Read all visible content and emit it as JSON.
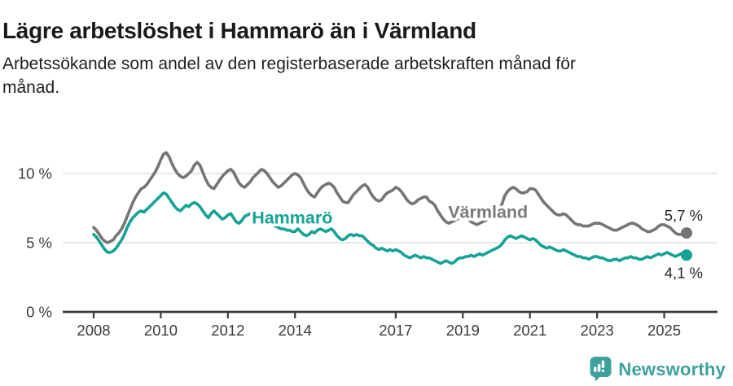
{
  "header": {
    "title": "Lägre arbetslöshet i Hammarö än i Värmland",
    "subtitle_line1": "Arbetssökande som andel av den registerbaserade arbetskraften månad för",
    "subtitle_line2": "månad."
  },
  "footer": {
    "brand": "Newsworthy",
    "logo_icon": "bar-chart-speech-bubble-icon",
    "brand_color": "#3da19b"
  },
  "chart_data": {
    "type": "line",
    "title": "",
    "xlabel": "",
    "ylabel": "",
    "unit": "%",
    "x_interval": "monthly",
    "x_range": [
      "2008-01",
      "2025-09"
    ],
    "ylim": [
      0,
      12.2
    ],
    "grid": "horizontal",
    "y_gridlines": [
      5,
      10
    ],
    "gridline_color": "#d9d9d9",
    "axis_color": "#3b3b3b",
    "y_ticks": [
      {
        "value": 0,
        "label": "0 %"
      },
      {
        "value": 5,
        "label": "5 %"
      },
      {
        "value": 10,
        "label": "10 %"
      }
    ],
    "x_ticks": [
      {
        "label": "2008",
        "month_index": 0
      },
      {
        "label": "2010",
        "month_index": 24
      },
      {
        "label": "2012",
        "month_index": 48
      },
      {
        "label": "2014",
        "month_index": 72
      },
      {
        "label": "2017",
        "month_index": 108
      },
      {
        "label": "2019",
        "month_index": 132
      },
      {
        "label": "2021",
        "month_index": 156
      },
      {
        "label": "2023",
        "month_index": 180
      },
      {
        "label": "2025",
        "month_index": 204
      }
    ],
    "series": [
      {
        "id": "varmland",
        "name": "Värmland",
        "color": "#757575",
        "label_color": "#7a7a7a",
        "end_label": "5,7 %",
        "end_value": 5.7,
        "end_label_position": "above",
        "inline_label": {
          "month_index": 141,
          "value": 7.2
        },
        "values": [
          6.1,
          5.9,
          5.6,
          5.3,
          5.1,
          5.0,
          5.1,
          5.2,
          5.5,
          5.7,
          6.0,
          6.4,
          6.9,
          7.4,
          7.9,
          8.3,
          8.6,
          8.9,
          9.0,
          9.2,
          9.5,
          9.8,
          10.1,
          10.5,
          11.0,
          11.4,
          11.5,
          11.2,
          10.7,
          10.3,
          10.0,
          9.8,
          9.7,
          9.8,
          10.0,
          10.2,
          10.6,
          10.8,
          10.6,
          10.1,
          9.6,
          9.2,
          9.0,
          8.9,
          9.2,
          9.5,
          9.8,
          10.0,
          10.2,
          10.3,
          10.1,
          9.7,
          9.3,
          9.1,
          9.0,
          9.2,
          9.4,
          9.7,
          9.9,
          10.1,
          10.3,
          10.2,
          10.0,
          9.7,
          9.4,
          9.2,
          9.0,
          9.1,
          9.3,
          9.5,
          9.7,
          9.9,
          10.0,
          9.9,
          9.7,
          9.3,
          8.9,
          8.6,
          8.4,
          8.3,
          8.6,
          8.9,
          9.1,
          9.2,
          9.3,
          9.2,
          9.0,
          8.6,
          8.3,
          8.0,
          7.9,
          7.9,
          8.2,
          8.5,
          8.7,
          8.9,
          9.1,
          9.2,
          9.0,
          8.6,
          8.3,
          8.1,
          8.0,
          8.1,
          8.4,
          8.6,
          8.7,
          8.8,
          9.0,
          8.9,
          8.7,
          8.4,
          8.1,
          7.9,
          7.8,
          7.9,
          8.1,
          8.2,
          8.3,
          8.3,
          8.0,
          7.9,
          7.7,
          7.3,
          7.0,
          6.7,
          6.5,
          6.4,
          6.5,
          6.6,
          6.7,
          6.8,
          6.9,
          6.8,
          6.7,
          6.5,
          6.4,
          6.3,
          6.4,
          6.5,
          6.6,
          6.7,
          6.8,
          7.0,
          7.2,
          7.4,
          7.8,
          8.4,
          8.7,
          8.9,
          9.0,
          8.9,
          8.7,
          8.6,
          8.6,
          8.7,
          8.9,
          8.9,
          8.8,
          8.5,
          8.2,
          7.9,
          7.7,
          7.5,
          7.3,
          7.1,
          7.0,
          7.0,
          7.1,
          7.0,
          6.8,
          6.6,
          6.4,
          6.3,
          6.3,
          6.2,
          6.2,
          6.2,
          6.3,
          6.4,
          6.4,
          6.4,
          6.3,
          6.2,
          6.1,
          6.0,
          5.9,
          5.9,
          6.0,
          6.1,
          6.2,
          6.3,
          6.4,
          6.4,
          6.3,
          6.2,
          6.0,
          5.9,
          5.8,
          5.8,
          5.9,
          6.0,
          6.2,
          6.3,
          6.3,
          6.2,
          6.1,
          5.9,
          5.7,
          5.6,
          5.6,
          5.7,
          5.7
        ]
      },
      {
        "id": "hammaro",
        "name": "Hammarö",
        "color": "#14a395",
        "label_color": "#14a395",
        "end_label": "4,1 %",
        "end_value": 4.1,
        "end_label_position": "below",
        "inline_label": {
          "month_index": 71,
          "value": 6.8
        },
        "values": [
          5.6,
          5.4,
          5.1,
          4.8,
          4.5,
          4.3,
          4.3,
          4.4,
          4.6,
          4.9,
          5.2,
          5.6,
          6.1,
          6.5,
          6.8,
          7.0,
          7.2,
          7.3,
          7.2,
          7.4,
          7.6,
          7.8,
          8.0,
          8.2,
          8.4,
          8.6,
          8.5,
          8.2,
          7.9,
          7.6,
          7.4,
          7.3,
          7.5,
          7.7,
          7.6,
          7.8,
          7.9,
          7.8,
          7.6,
          7.3,
          7.0,
          6.8,
          7.1,
          7.3,
          7.1,
          6.9,
          6.7,
          6.8,
          7.0,
          7.1,
          6.8,
          6.5,
          6.4,
          6.6,
          6.9,
          7.0,
          7.1,
          7.0,
          6.9,
          6.9,
          6.9,
          6.8,
          6.7,
          6.5,
          6.3,
          6.2,
          6.1,
          6.0,
          6.0,
          5.9,
          5.9,
          5.8,
          5.8,
          6.0,
          5.8,
          5.6,
          5.5,
          5.6,
          5.8,
          5.7,
          5.9,
          6.0,
          5.9,
          5.8,
          5.9,
          6.0,
          5.8,
          5.5,
          5.3,
          5.2,
          5.3,
          5.5,
          5.6,
          5.5,
          5.6,
          5.5,
          5.5,
          5.3,
          5.1,
          4.9,
          4.8,
          4.6,
          4.5,
          4.6,
          4.5,
          4.4,
          4.5,
          4.4,
          4.5,
          4.4,
          4.3,
          4.1,
          4.0,
          3.9,
          4.0,
          4.1,
          4.0,
          3.9,
          4.0,
          3.9,
          3.9,
          3.8,
          3.7,
          3.6,
          3.5,
          3.6,
          3.7,
          3.6,
          3.5,
          3.6,
          3.8,
          3.9,
          3.9,
          4.0,
          4.0,
          4.1,
          4.0,
          4.1,
          4.2,
          4.1,
          4.2,
          4.3,
          4.4,
          4.5,
          4.6,
          4.7,
          4.9,
          5.2,
          5.4,
          5.5,
          5.4,
          5.3,
          5.4,
          5.5,
          5.4,
          5.3,
          5.2,
          5.3,
          5.2,
          5.0,
          4.8,
          4.7,
          4.6,
          4.7,
          4.6,
          4.5,
          4.4,
          4.4,
          4.5,
          4.4,
          4.3,
          4.2,
          4.1,
          4.0,
          4.0,
          3.9,
          3.9,
          3.8,
          3.9,
          4.0,
          4.0,
          3.9,
          3.9,
          3.8,
          3.7,
          3.7,
          3.8,
          3.8,
          3.7,
          3.8,
          3.9,
          3.9,
          4.0,
          3.9,
          3.9,
          3.8,
          3.8,
          3.9,
          4.0,
          3.9,
          4.0,
          4.1,
          4.2,
          4.1,
          4.2,
          4.3,
          4.2,
          4.1,
          4.0,
          4.1,
          4.2,
          4.3,
          4.1
        ]
      }
    ]
  }
}
